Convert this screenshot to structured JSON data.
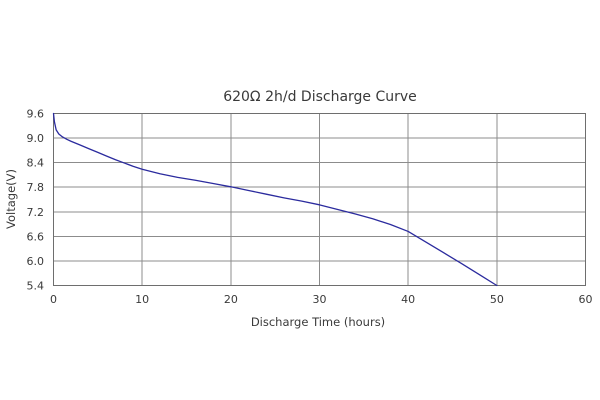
{
  "chart_data": {
    "type": "line",
    "title": "620Ω 2h/d Discharge Curve",
    "xlabel": "Discharge Time (hours)",
    "ylabel": "Voltage(V)",
    "xlim": [
      0,
      60
    ],
    "ylim": [
      5.4,
      9.6
    ],
    "x_ticks": [
      "0",
      "10",
      "20",
      "30",
      "40",
      "50",
      "60"
    ],
    "y_ticks": [
      "9.6",
      "9.0",
      "8.4",
      "7.8",
      "7.2",
      "6.6",
      "6.0",
      "5.4"
    ],
    "grid": true,
    "series_color": "#2b2b9e",
    "series": [
      {
        "x": [
          0,
          0.1,
          0.3,
          0.6,
          1,
          1.5,
          2,
          3,
          4,
          5,
          6,
          7,
          8,
          9,
          10,
          12,
          14,
          16,
          18,
          20,
          22,
          24,
          26,
          28,
          30,
          32,
          34,
          36,
          38,
          40,
          42,
          44,
          46,
          48,
          50
        ],
        "y": [
          9.6,
          9.4,
          9.2,
          9.1,
          9.03,
          8.97,
          8.92,
          8.83,
          8.74,
          8.65,
          8.56,
          8.47,
          8.39,
          8.31,
          8.24,
          8.13,
          8.04,
          7.97,
          7.89,
          7.81,
          7.72,
          7.63,
          7.54,
          7.46,
          7.37,
          7.26,
          7.15,
          7.03,
          6.89,
          6.72,
          6.46,
          6.2,
          5.94,
          5.67,
          5.4
        ]
      }
    ]
  }
}
